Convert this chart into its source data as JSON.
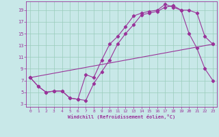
{
  "xlabel": "Windchill (Refroidissement éolien,°C)",
  "background_color": "#c8e8e8",
  "line_color": "#993399",
  "grid_color": "#99ccbb",
  "xlim": [
    -0.5,
    23.5
  ],
  "ylim": [
    2.5,
    20.5
  ],
  "xticks": [
    0,
    1,
    2,
    3,
    4,
    5,
    6,
    7,
    8,
    9,
    10,
    11,
    12,
    13,
    14,
    15,
    16,
    17,
    18,
    19,
    20,
    21,
    22,
    23
  ],
  "yticks": [
    3,
    5,
    7,
    9,
    11,
    13,
    15,
    17,
    19
  ],
  "line1_x": [
    0,
    1,
    2,
    3,
    4,
    5,
    6,
    7,
    8,
    9,
    10,
    11,
    12,
    13,
    14,
    15,
    16,
    17,
    18,
    19,
    20,
    21,
    22,
    23
  ],
  "line1_y": [
    7.5,
    6.0,
    5.0,
    5.2,
    5.2,
    4.0,
    3.8,
    3.6,
    6.5,
    8.5,
    10.5,
    13.2,
    15.0,
    16.5,
    18.2,
    18.5,
    18.8,
    19.5,
    19.8,
    19.0,
    15.0,
    12.5,
    9.0,
    7.0
  ],
  "line2_x": [
    0,
    1,
    2,
    3,
    4,
    5,
    6,
    7,
    8,
    9,
    10,
    11,
    12,
    13,
    14,
    15,
    16,
    17,
    18,
    19,
    20,
    21,
    22,
    23
  ],
  "line2_y": [
    7.5,
    6.0,
    5.0,
    5.2,
    5.2,
    4.0,
    3.8,
    8.0,
    7.5,
    10.5,
    13.2,
    14.5,
    16.2,
    18.0,
    18.5,
    18.8,
    19.0,
    20.0,
    19.5,
    19.0,
    19.0,
    18.5,
    14.5,
    13.2
  ],
  "line3_x": [
    0,
    23
  ],
  "line3_y": [
    7.5,
    13.2
  ]
}
